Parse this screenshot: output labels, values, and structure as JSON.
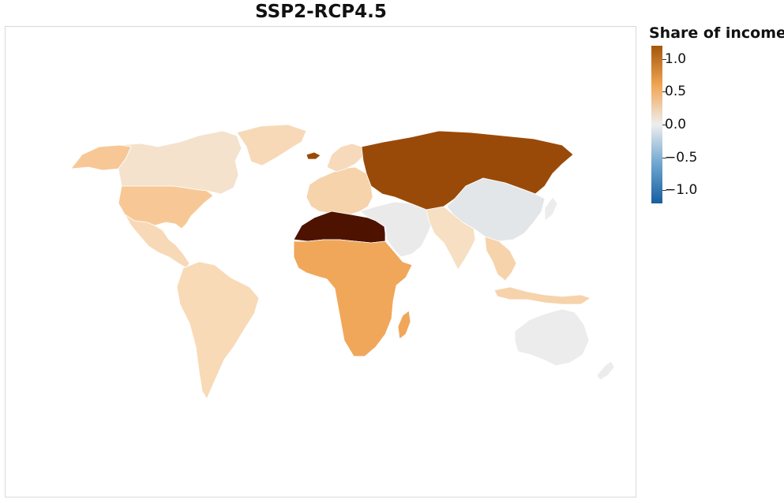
{
  "title": "SSP2-RCP4.5",
  "legend": {
    "title": "Share of income",
    "ticks": [
      {
        "value": 1.0,
        "label": "1.0"
      },
      {
        "value": 0.5,
        "label": "0.5"
      },
      {
        "value": 0.0,
        "label": "0.0"
      },
      {
        "value": -0.5,
        "label": "−0.5"
      },
      {
        "value": -1.0,
        "label": "−1.0"
      }
    ],
    "range": [
      -1.2,
      1.2
    ],
    "colors": {
      "high": "#a4560c",
      "mid_high": "#f0a652",
      "neutral": "#eeeeee",
      "mid_low": "#6ea6cf",
      "low": "#175ea0"
    }
  },
  "regions": [
    {
      "id": "canada",
      "value": 0.1,
      "color": "#f4e2cd"
    },
    {
      "id": "usa",
      "value": 0.5,
      "color": "#f7c896"
    },
    {
      "id": "alaska",
      "value": 0.5,
      "color": "#f7c896"
    },
    {
      "id": "greenland",
      "value": 0.2,
      "color": "#f7d9b8"
    },
    {
      "id": "central-america",
      "value": 0.25,
      "color": "#f7d9b8"
    },
    {
      "id": "south-america",
      "value": 0.25,
      "color": "#f8dab6"
    },
    {
      "id": "europe",
      "value": 0.3,
      "color": "#f6d3ab"
    },
    {
      "id": "scandinavia",
      "value": 0.25,
      "color": "#f7dabb"
    },
    {
      "id": "russia-central-asia",
      "value": 1.2,
      "color": "#9a4a08"
    },
    {
      "id": "north-africa",
      "value": 1.5,
      "color": "#4d1300"
    },
    {
      "id": "sub-saharan-africa",
      "value": 0.75,
      "color": "#f0a75a"
    },
    {
      "id": "madagascar",
      "value": 0.75,
      "color": "#f0a75a"
    },
    {
      "id": "middle-east",
      "value": 0.0,
      "color": "#eaeaea"
    },
    {
      "id": "china",
      "value": -0.05,
      "color": "#e3e6e8"
    },
    {
      "id": "india",
      "value": 0.25,
      "color": "#f7dfc3"
    },
    {
      "id": "southeast-asia",
      "value": 0.3,
      "color": "#f6d3ab"
    },
    {
      "id": "japan",
      "value": 0.0,
      "color": "#ececec"
    },
    {
      "id": "australia",
      "value": 0.0,
      "color": "#ececec"
    },
    {
      "id": "new-zealand",
      "value": 0.0,
      "color": "#ececec"
    },
    {
      "id": "iceland",
      "value": 1.2,
      "color": "#9a4a08"
    }
  ]
}
